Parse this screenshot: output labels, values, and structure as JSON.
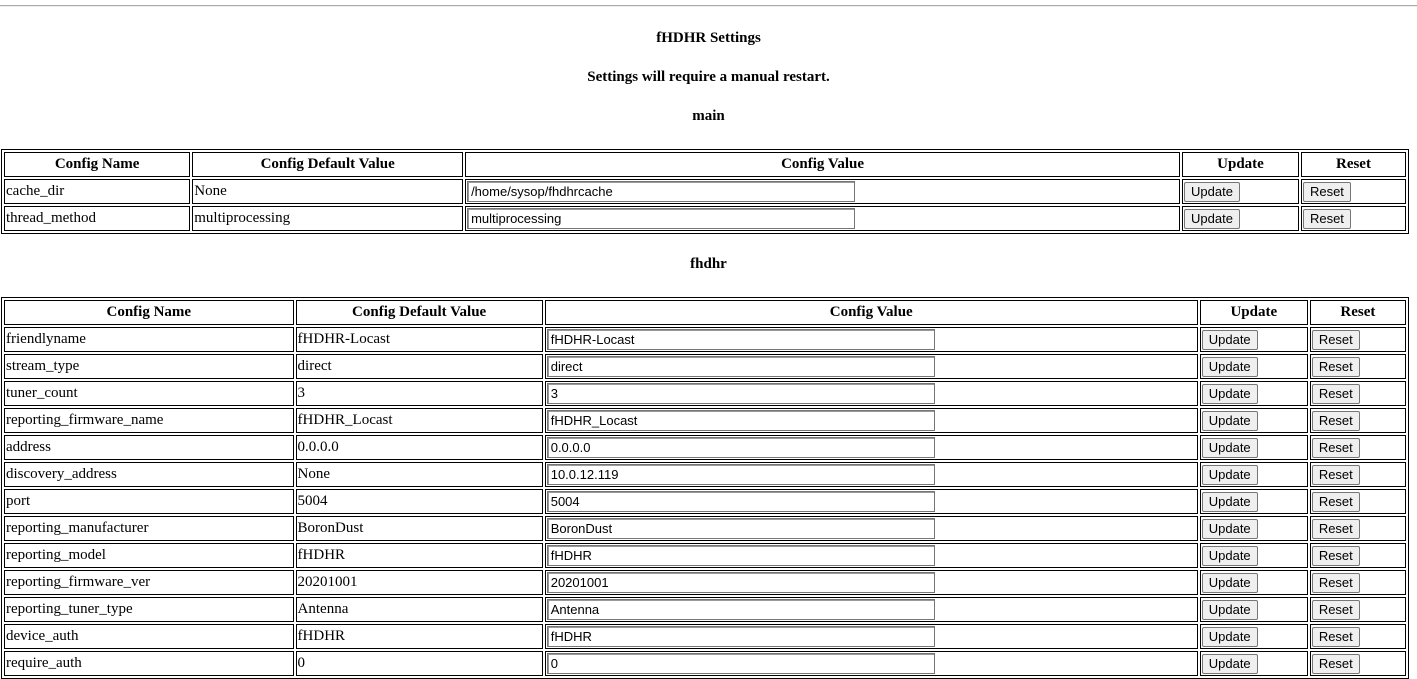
{
  "page": {
    "title": "fHDHR Settings",
    "notice": "Settings will require a manual restart."
  },
  "columns": [
    "Config Name",
    "Config Default Value",
    "Config Value",
    "Update",
    "Reset"
  ],
  "buttons": {
    "update": "Update",
    "reset": "Reset"
  },
  "sections": [
    {
      "name": "main",
      "rows": [
        {
          "name": "cache_dir",
          "default": "None",
          "value": "/home/sysop/fhdhrcache"
        },
        {
          "name": "thread_method",
          "default": "multiprocessing",
          "value": "multiprocessing"
        }
      ]
    },
    {
      "name": "fhdhr",
      "rows": [
        {
          "name": "friendlyname",
          "default": "fHDHR-Locast",
          "value": "fHDHR-Locast"
        },
        {
          "name": "stream_type",
          "default": "direct",
          "value": "direct"
        },
        {
          "name": "tuner_count",
          "default": "3",
          "value": "3"
        },
        {
          "name": "reporting_firmware_name",
          "default": "fHDHR_Locast",
          "value": "fHDHR_Locast"
        },
        {
          "name": "address",
          "default": "0.0.0.0",
          "value": "0.0.0.0"
        },
        {
          "name": "discovery_address",
          "default": "None",
          "value": "10.0.12.119"
        },
        {
          "name": "port",
          "default": "5004",
          "value": "5004"
        },
        {
          "name": "reporting_manufacturer",
          "default": "BoronDust",
          "value": "BoronDust"
        },
        {
          "name": "reporting_model",
          "default": "fHDHR",
          "value": "fHDHR"
        },
        {
          "name": "reporting_firmware_ver",
          "default": "20201001",
          "value": "20201001"
        },
        {
          "name": "reporting_tuner_type",
          "default": "Antenna",
          "value": "Antenna"
        },
        {
          "name": "device_auth",
          "default": "fHDHR",
          "value": "fHDHR"
        },
        {
          "name": "require_auth",
          "default": "0",
          "value": "0"
        }
      ]
    }
  ]
}
